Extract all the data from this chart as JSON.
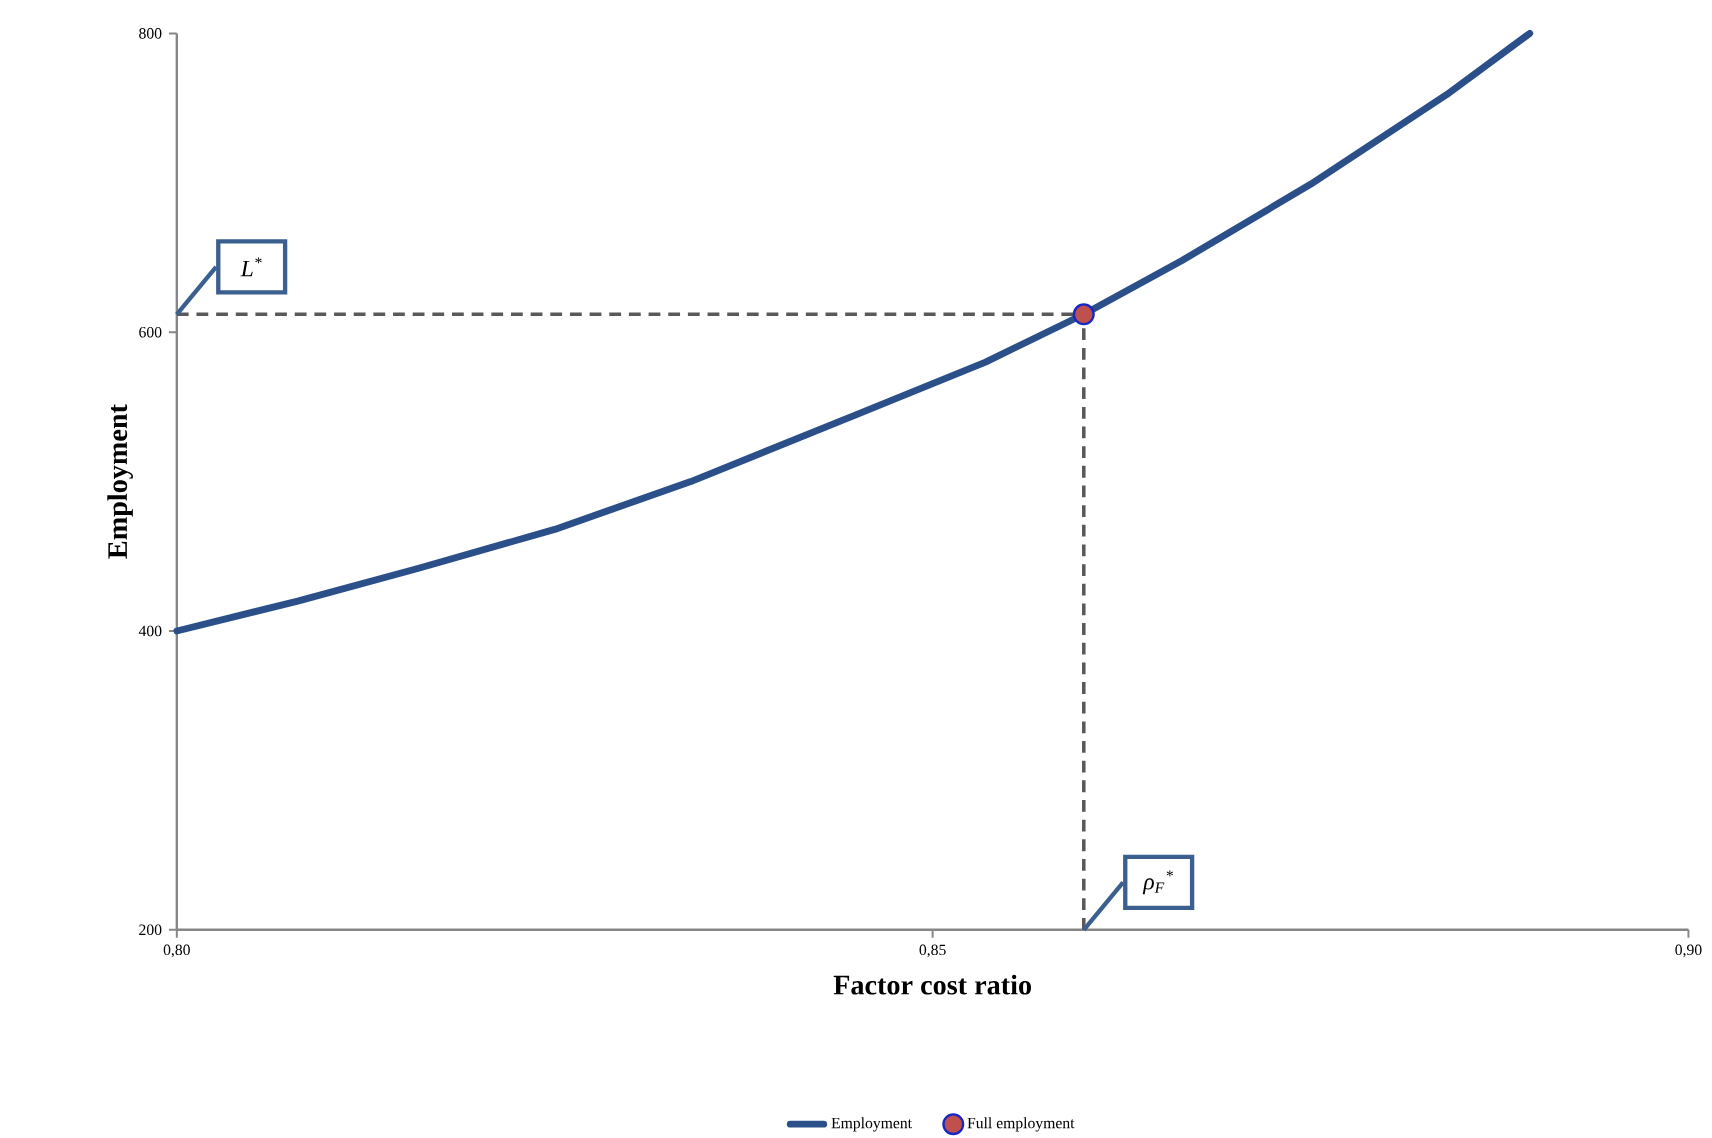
{
  "chart_data": {
    "type": "line",
    "xlabel": "Factor cost ratio",
    "ylabel": "Employment",
    "xlim": [
      0.8,
      0.9
    ],
    "ylim": [
      200,
      800
    ],
    "xticks": [
      {
        "value": 0.8,
        "label": "0,80"
      },
      {
        "value": 0.85,
        "label": "0,85"
      },
      {
        "value": 0.9,
        "label": "0,90"
      }
    ],
    "yticks": [
      200,
      400,
      600,
      800
    ],
    "series": [
      {
        "name": "Employment",
        "color": "#2b5089",
        "marker": "none",
        "line_style": "solid",
        "x": [
          0.8,
          0.808,
          0.816,
          0.825,
          0.834,
          0.845,
          0.8535,
          0.86,
          0.8665,
          0.875,
          0.884,
          0.8895
        ],
        "values": [
          400,
          420,
          442,
          468,
          500,
          545,
          580,
          612,
          648,
          699,
          759,
          800
        ]
      },
      {
        "name": "Full employment",
        "type": "scatter",
        "color": "#c0504d",
        "marker": "circle",
        "x": [
          0.86
        ],
        "values": [
          612
        ]
      }
    ],
    "ref_lines": [
      {
        "axis": "y",
        "value": 612,
        "label": "L$^{*}$",
        "color": "#595959",
        "line_style": "dashed"
      },
      {
        "axis": "x",
        "value": 0.86,
        "label": "ρ$_{F}$$^{*}$",
        "color": "#595959",
        "line_style": "dashed"
      }
    ],
    "legend": "bottom"
  }
}
